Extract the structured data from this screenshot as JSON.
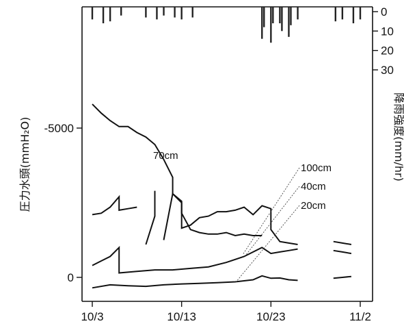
{
  "chart_data": {
    "type": "line",
    "ylabel": "圧力水頭(mmH₂O)",
    "y2label": "降雨強度(mm/hr)",
    "x_ticks": [
      "10/3",
      "10/13",
      "10/23",
      "11/2"
    ],
    "x_range_days": [
      "10/3",
      "11/2"
    ],
    "y_ticks": [
      {
        "value": -5000,
        "label": "-5000"
      },
      {
        "value": 0,
        "label": "0"
      }
    ],
    "ylim": [
      -7200,
      800
    ],
    "y_inverted": true,
    "y2_ticks": [
      {
        "value": 0,
        "label": "0"
      },
      {
        "value": 10,
        "label": "10"
      },
      {
        "value": 20,
        "label": "20"
      },
      {
        "value": 30,
        "label": "30"
      }
    ],
    "y2lim": [
      0,
      30
    ],
    "series": [
      {
        "name": "70cm",
        "segments": [
          [
            [
              "10/3",
              -5800
            ],
            [
              "10/4",
              -5500
            ],
            [
              "10/5",
              -5250
            ],
            [
              "10/6",
              -5050
            ],
            [
              "10/7",
              -5050
            ],
            [
              "10/8",
              -4850
            ],
            [
              "10/9",
              -4700
            ],
            [
              "10/10",
              -4450
            ],
            [
              "10/11",
              -3950
            ],
            [
              "10/12",
              -3350
            ],
            [
              "10/12",
              -2800
            ],
            [
              "10/13",
              -2550
            ],
            [
              "10/13",
              -2150
            ],
            [
              "10/14",
              -1600
            ],
            [
              "10/15",
              -1500
            ],
            [
              "10/16",
              -1450
            ],
            [
              "10/17",
              -1450
            ],
            [
              "10/18",
              -1500
            ],
            [
              "10/19",
              -1400
            ],
            [
              "10/20",
              -1450
            ],
            [
              "10/21",
              -1400
            ],
            [
              "10/22",
              -1400
            ]
          ]
        ]
      },
      {
        "name": "100cm",
        "segments": [
          [
            [
              "10/3",
              -2100
            ],
            [
              "10/4",
              -2150
            ],
            [
              "10/5",
              -2350
            ],
            [
              "10/6",
              -2700
            ],
            [
              "10/6",
              -2250
            ],
            [
              "10/7",
              -2300
            ],
            [
              "10/8",
              -2350
            ]
          ],
          [
            [
              "10/9",
              -1100
            ],
            [
              "10/10",
              -2050
            ],
            [
              "10/10",
              -2900
            ]
          ],
          [
            [
              "10/11",
              -1250
            ],
            [
              "10/12",
              -2800
            ],
            [
              "10/13",
              -2500
            ],
            [
              "10/13",
              -1650
            ],
            [
              "10/14",
              -1750
            ],
            [
              "10/15",
              -2000
            ],
            [
              "10/16",
              -2050
            ],
            [
              "10/17",
              -2200
            ],
            [
              "10/18",
              -2200
            ],
            [
              "10/19",
              -2250
            ],
            [
              "10/20",
              -2350
            ],
            [
              "10/21",
              -2100
            ],
            [
              "10/22",
              -2400
            ],
            [
              "10/23",
              -2300
            ],
            [
              "10/23",
              -1600
            ],
            [
              "10/24",
              -1200
            ],
            [
              "10/25",
              -1150
            ],
            [
              "10/26",
              -1100
            ]
          ],
          [
            [
              "10/30",
              -1200
            ],
            [
              "10/31",
              -1150
            ],
            [
              "11/1",
              -1100
            ]
          ]
        ]
      },
      {
        "name": "40cm",
        "segments": [
          [
            [
              "10/3",
              -400
            ],
            [
              "10/4",
              -550
            ],
            [
              "10/5",
              -700
            ],
            [
              "10/6",
              -1000
            ],
            [
              "10/6",
              -150
            ],
            [
              "10/8",
              -200
            ],
            [
              "10/10",
              -250
            ],
            [
              "10/12",
              -250
            ],
            [
              "10/14",
              -300
            ],
            [
              "10/16",
              -350
            ],
            [
              "10/18",
              -500
            ],
            [
              "10/20",
              -700
            ],
            [
              "10/22",
              -1000
            ],
            [
              "10/23",
              -800
            ],
            [
              "10/24",
              -850
            ],
            [
              "10/25",
              -900
            ],
            [
              "10/26",
              -950
            ]
          ],
          [
            [
              "10/30",
              -900
            ],
            [
              "10/31",
              -850
            ],
            [
              "11/1",
              -800
            ]
          ]
        ]
      },
      {
        "name": "20cm",
        "segments": [
          [
            [
              "10/3",
              350
            ],
            [
              "10/5",
              250
            ],
            [
              "10/7",
              280
            ],
            [
              "10/9",
              300
            ],
            [
              "10/11",
              250
            ],
            [
              "10/13",
              220
            ],
            [
              "10/15",
              200
            ],
            [
              "10/17",
              180
            ],
            [
              "10/19",
              150
            ],
            [
              "10/21",
              80
            ],
            [
              "10/22",
              -50
            ],
            [
              "10/23",
              30
            ],
            [
              "10/24",
              20
            ],
            [
              "10/25",
              80
            ],
            [
              "10/26",
              100
            ]
          ],
          [
            [
              "10/30",
              30
            ],
            [
              "10/31",
              0
            ],
            [
              "11/1",
              -30
            ]
          ]
        ]
      }
    ],
    "rain_bars": [
      {
        "x": "10/3",
        "mm": 4
      },
      {
        "x": "10/4",
        "mm": 6
      },
      {
        "x": "10/5",
        "mm": 5
      },
      {
        "x": "10/6",
        "mm": 2
      },
      {
        "x": "10/9",
        "mm": 3
      },
      {
        "x": "10/10",
        "mm": 4
      },
      {
        "x": "10/11",
        "mm": 2
      },
      {
        "x": "10/12",
        "mm": 3
      },
      {
        "x": "10/13",
        "mm": 4
      },
      {
        "x": "10/14",
        "mm": 3
      },
      {
        "x": "10/22",
        "mm": 14
      },
      {
        "x": "10/22",
        "mm": 8
      },
      {
        "x": "10/23",
        "mm": 16
      },
      {
        "x": "10/23",
        "mm": 6
      },
      {
        "x": "10/24",
        "mm": 6
      },
      {
        "x": "10/24",
        "mm": 10
      },
      {
        "x": "10/25",
        "mm": 13
      },
      {
        "x": "10/25",
        "mm": 7
      },
      {
        "x": "10/26",
        "mm": 4
      },
      {
        "x": "10/30",
        "mm": 5
      },
      {
        "x": "10/31",
        "mm": 4
      },
      {
        "x": "11/1",
        "mm": 6
      },
      {
        "x": "11/2",
        "mm": 4
      }
    ]
  }
}
